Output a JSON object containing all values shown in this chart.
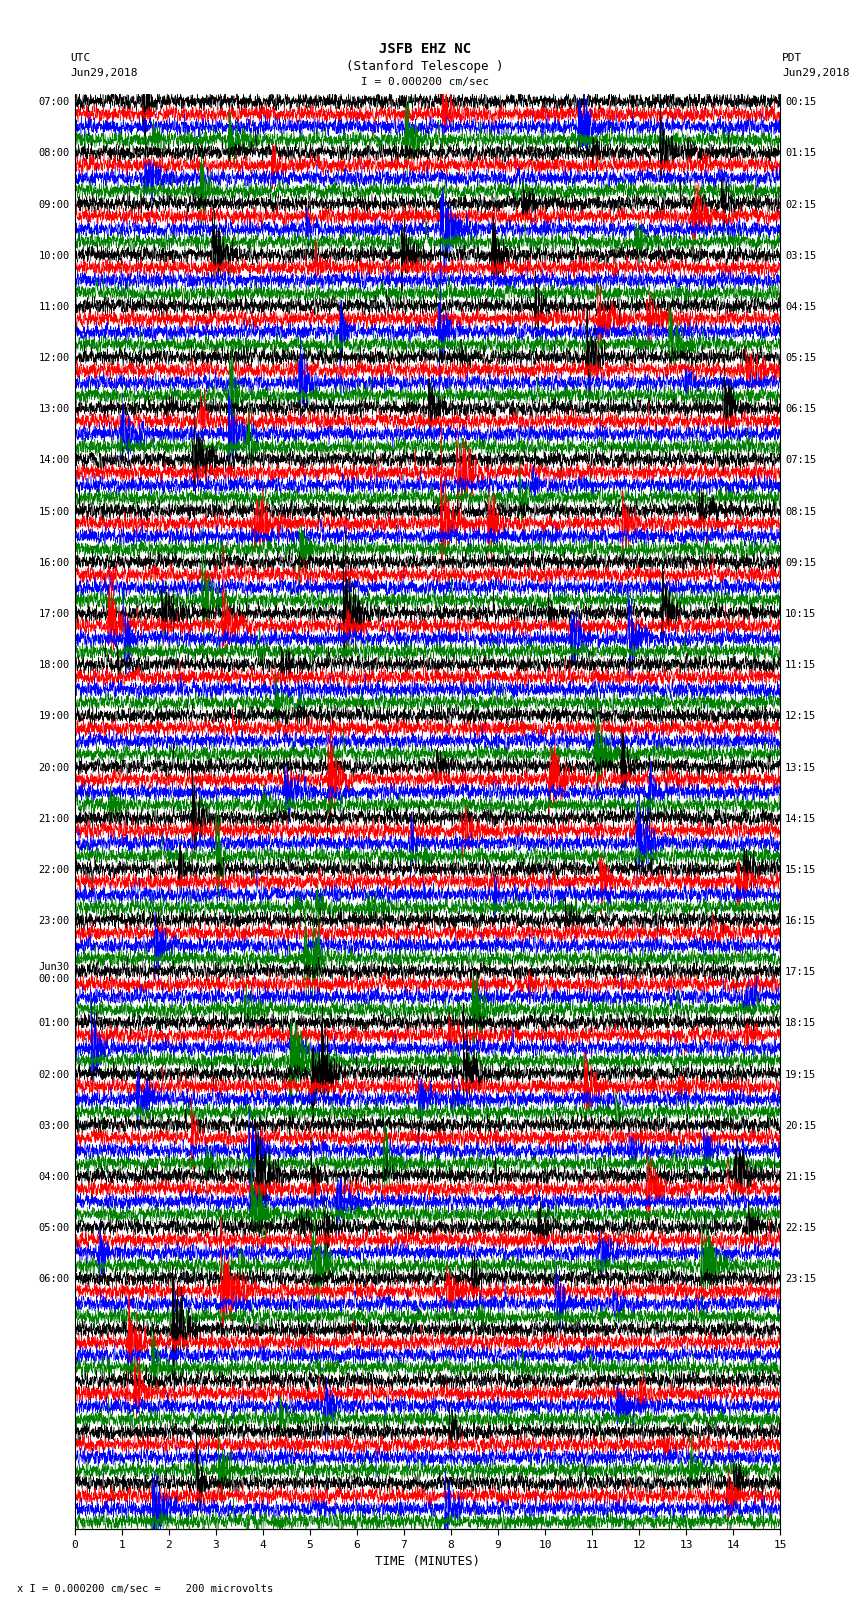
{
  "title_line1": "JSFB EHZ NC",
  "title_line2": "(Stanford Telescope )",
  "scale_label": "I = 0.000200 cm/sec",
  "bottom_label": "x I = 0.000200 cm/sec =    200 microvolts",
  "xlabel": "TIME (MINUTES)",
  "utc_label1": "UTC",
  "utc_label2": "Jun29,2018",
  "pdt_label1": "PDT",
  "pdt_label2": "Jun29,2018",
  "utc_times": [
    "07:00",
    "",
    "",
    "",
    "08:00",
    "",
    "",
    "",
    "09:00",
    "",
    "",
    "",
    "10:00",
    "",
    "",
    "",
    "11:00",
    "",
    "",
    "",
    "12:00",
    "",
    "",
    "",
    "13:00",
    "",
    "",
    "",
    "14:00",
    "",
    "",
    "",
    "15:00",
    "",
    "",
    "",
    "16:00",
    "",
    "",
    "",
    "17:00",
    "",
    "",
    "",
    "18:00",
    "",
    "",
    "",
    "19:00",
    "",
    "",
    "",
    "20:00",
    "",
    "",
    "",
    "21:00",
    "",
    "",
    "",
    "22:00",
    "",
    "",
    "",
    "23:00",
    "",
    "",
    "",
    "Jun30\n00:00",
    "",
    "",
    "",
    "01:00",
    "",
    "",
    "",
    "02:00",
    "",
    "",
    "",
    "03:00",
    "",
    "",
    "",
    "04:00",
    "",
    "",
    "",
    "05:00",
    "",
    "",
    "",
    "06:00",
    "",
    "",
    ""
  ],
  "pdt_times": [
    "00:15",
    "",
    "",
    "",
    "01:15",
    "",
    "",
    "",
    "02:15",
    "",
    "",
    "",
    "03:15",
    "",
    "",
    "",
    "04:15",
    "",
    "",
    "",
    "05:15",
    "",
    "",
    "",
    "06:15",
    "",
    "",
    "",
    "07:15",
    "",
    "",
    "",
    "08:15",
    "",
    "",
    "",
    "09:15",
    "",
    "",
    "",
    "10:15",
    "",
    "",
    "",
    "11:15",
    "",
    "",
    "",
    "12:15",
    "",
    "",
    "",
    "13:15",
    "",
    "",
    "",
    "14:15",
    "",
    "",
    "",
    "15:15",
    "",
    "",
    "",
    "16:15",
    "",
    "",
    "",
    "17:15",
    "",
    "",
    "",
    "18:15",
    "",
    "",
    "",
    "19:15",
    "",
    "",
    "",
    "20:15",
    "",
    "",
    "",
    "21:15",
    "",
    "",
    "",
    "22:15",
    "",
    "",
    "",
    "23:15",
    "",
    "",
    ""
  ],
  "trace_colors": [
    "black",
    "red",
    "blue",
    "green"
  ],
  "n_traces": 112,
  "x_min": 0,
  "x_max": 15,
  "bg_color": "white",
  "fig_width": 8.5,
  "fig_height": 16.13,
  "dpi": 100
}
